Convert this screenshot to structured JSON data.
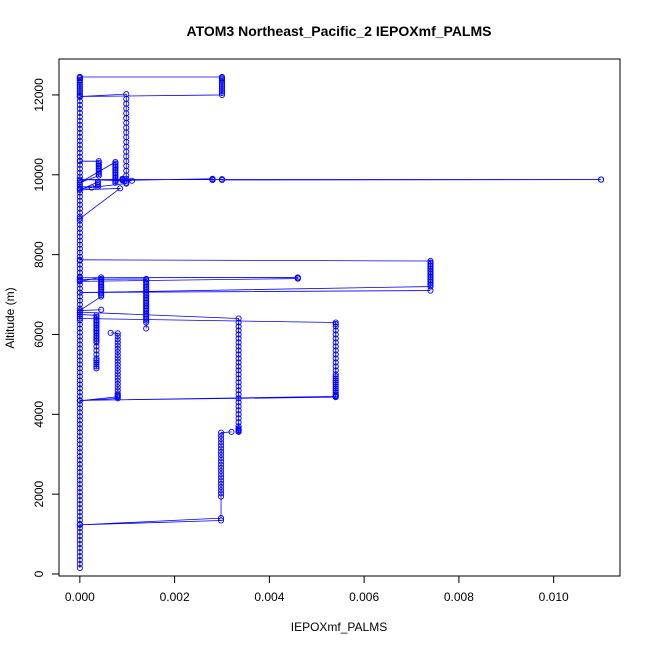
{
  "chart_data": {
    "type": "line",
    "title": "ATOM3 Northeast_Pacific_2 IEPOXmf_PALMS",
    "xlabel": "IEPOXmf_PALMS",
    "ylabel": "Altitude (m)",
    "xlim": [
      -0.00044,
      0.0114
    ],
    "ylim": [
      -50,
      12900
    ],
    "x_ticks": [
      0.0,
      0.002,
      0.004,
      0.006,
      0.008,
      0.01
    ],
    "x_tick_labels": [
      "0.000",
      "0.002",
      "0.004",
      "0.006",
      "0.008",
      "0.010"
    ],
    "y_ticks": [
      0,
      2000,
      4000,
      6000,
      8000,
      10000,
      12000
    ],
    "y_tick_labels": [
      "0",
      "2000",
      "4000",
      "6000",
      "8000",
      "10000",
      "12000"
    ],
    "marker": "open-circle",
    "color": "#0000ff",
    "series": [
      {
        "x": [
          0,
          0,
          0,
          0,
          0,
          0,
          0,
          0,
          0,
          0,
          0,
          0,
          0,
          0,
          0,
          0,
          0,
          0,
          0,
          0,
          0,
          0,
          0,
          0,
          0,
          0,
          0,
          0,
          0,
          0,
          0,
          0,
          0,
          0,
          0,
          0,
          0,
          0,
          0,
          0,
          0,
          0,
          0,
          0,
          0,
          0,
          0,
          0,
          0,
          0,
          0,
          0,
          0,
          0,
          0,
          0,
          0,
          0,
          0,
          0,
          0,
          0,
          0,
          0,
          0,
          0,
          0,
          0,
          0,
          0,
          0,
          0,
          0,
          0,
          0,
          0,
          0,
          0,
          0,
          0,
          0,
          0,
          0,
          0,
          0,
          0,
          0,
          0,
          0,
          0,
          0,
          0,
          0,
          0,
          0,
          0,
          0,
          0,
          0,
          0,
          0,
          0,
          0,
          0,
          0,
          0,
          0,
          0,
          0,
          0,
          0,
          0,
          0,
          0,
          0,
          0,
          0,
          0,
          0,
          0,
          0,
          0,
          0,
          0,
          0,
          0,
          0,
          0,
          0,
          0
        ],
        "y": [
          150,
          250,
          350,
          450,
          550,
          650,
          750,
          850,
          950,
          1050,
          1150,
          1250,
          1350,
          1450,
          1550,
          1650,
          1750,
          1850,
          1950,
          2050,
          2150,
          2250,
          2350,
          2450,
          2550,
          2650,
          2750,
          2850,
          2950,
          3050,
          3150,
          3250,
          3350,
          3450,
          3550,
          3650,
          3750,
          3850,
          3950,
          4050,
          4150,
          4250,
          4350,
          4450,
          4550,
          4650,
          4750,
          4850,
          4950,
          5050,
          5150,
          5250,
          5350,
          5450,
          5550,
          5650,
          5750,
          5850,
          5950,
          6050,
          6150,
          6250,
          6350,
          6450,
          6550,
          6650,
          6750,
          6850,
          6950,
          7050,
          7150,
          7250,
          7350,
          7450,
          7550,
          7650,
          7750,
          7850,
          7950,
          8050,
          8150,
          8250,
          8350,
          8450,
          8550,
          8650,
          8750,
          8850,
          8950,
          9050,
          9150,
          9250,
          9350,
          9450,
          9550,
          9650,
          9750,
          9850,
          9950,
          10050,
          10150,
          10250,
          10350,
          10450,
          10550,
          10650,
          10750,
          10850,
          10950,
          11050,
          11150,
          11250,
          11350,
          11450,
          11550,
          11650,
          11750,
          11850,
          11950,
          12050,
          12150,
          12250,
          12350,
          12450,
          12420,
          12380,
          12300,
          12200,
          12100,
          12000
        ]
      },
      {
        "x": [
          0,
          0.003,
          0.003,
          0.003,
          0.003,
          0.003,
          0.003,
          0.003,
          0.003,
          0.003,
          0.003,
          0.003,
          0,
          0,
          0.00098,
          0.00098,
          0.00098,
          0.00098,
          0.00098,
          0.00098,
          0.00098,
          0.00098,
          0.00098,
          0.00098,
          0.00098,
          0.00098,
          0.00098,
          0.00098,
          0.00098,
          0.00098,
          0.00098,
          0.00098,
          0.00098,
          0.00098,
          0.00098,
          0.00098,
          0,
          0.00025
        ],
        "y": [
          12450,
          12450,
          12420,
          12390,
          12350,
          12300,
          12250,
          12200,
          12150,
          12100,
          12050,
          12000,
          11960,
          11960,
          12020,
          11900,
          11780,
          11660,
          11540,
          11420,
          11300,
          11180,
          11060,
          10940,
          10820,
          10700,
          10580,
          10460,
          10340,
          10220,
          10100,
          9980,
          9900,
          9850,
          9800,
          9780,
          9650,
          9680
        ]
      },
      {
        "x": [
          0,
          0.0004,
          0.0004,
          0.0004,
          0.0004,
          0.0004,
          0.0004,
          0.0004,
          0.0004,
          0.0004,
          0.0004,
          0,
          0.00075,
          0.00075,
          0.00075,
          0.00075,
          0.00075,
          0.00075,
          0.00075,
          0.00075,
          0.00075,
          0.00075,
          0.00075,
          0.00075,
          0.00075,
          0.00075,
          0.0009,
          0.0009,
          0.0009,
          0.0028,
          0.0028,
          0.0028,
          0.003,
          0.003,
          0.011,
          0.011,
          0,
          0.0011
        ],
        "y": [
          10340,
          10340,
          10300,
          10260,
          10220,
          10180,
          10140,
          10100,
          10060,
          10020,
          9980,
          9800,
          10320,
          10280,
          10240,
          10200,
          10160,
          10120,
          10080,
          10040,
          10000,
          9960,
          9920,
          9880,
          9840,
          9800,
          9900,
          9880,
          9860,
          9900,
          9880,
          9870,
          9890,
          9870,
          9880,
          9880,
          9880,
          9850
        ]
      },
      {
        "x": [
          0,
          0.00038,
          0.00038,
          0.00038,
          0.00038,
          0,
          0.00085,
          0
        ],
        "y": [
          9700,
          9700,
          9740,
          9780,
          9820,
          9620,
          9660,
          8900
        ]
      },
      {
        "x": [
          0,
          0.0074,
          0.0074,
          0.0074,
          0.0074,
          0.0074,
          0.0074,
          0.0074,
          0.0074,
          0.0074,
          0.0074,
          0.0074,
          0.0074,
          0.0074,
          0.0074,
          0.0074,
          0.0074,
          0.0074,
          0,
          0.0074
        ],
        "y": [
          7870,
          7840,
          7800,
          7760,
          7720,
          7680,
          7640,
          7600,
          7560,
          7520,
          7480,
          7440,
          7400,
          7360,
          7320,
          7280,
          7240,
          7200,
          7050,
          7100
        ]
      },
      {
        "x": [
          0,
          0.0046,
          0.0046,
          0.0046,
          0,
          0.00045,
          0.00045,
          0.00045,
          0.00045,
          0.00045,
          0.00045,
          0.00045,
          0.00045,
          0.00045,
          0.00045,
          0.00045,
          0.00045,
          0.00045,
          0,
          0.00045
        ],
        "y": [
          7420,
          7430,
          7410,
          7400,
          7330,
          7430,
          7390,
          7350,
          7310,
          7270,
          7230,
          7190,
          7150,
          7110,
          7070,
          7030,
          6990,
          6950,
          6600,
          6620
        ]
      },
      {
        "x": [
          0,
          0.0014,
          0.0014,
          0.0014,
          0.0014,
          0.0014,
          0.0014,
          0.0014,
          0.0014,
          0.0014,
          0.0014,
          0.0014,
          0.0014,
          0.0014,
          0.0014,
          0.0014,
          0.0014,
          0.0014,
          0.0014,
          0.0014,
          0.0014,
          0.0014,
          0.0014,
          0.0014,
          0.0014,
          0.0014,
          0.0014,
          0.0014,
          0.0014,
          0.0014
        ],
        "y": [
          7380,
          7390,
          7350,
          7310,
          7270,
          7230,
          7190,
          7150,
          7110,
          7070,
          7030,
          6990,
          6950,
          6910,
          6870,
          6830,
          6790,
          6750,
          6710,
          6670,
          6630,
          6590,
          6550,
          6510,
          6470,
          6430,
          6390,
          6350,
          6300,
          6150
        ]
      },
      {
        "x": [
          0,
          0.00335,
          0.00335,
          0.00335,
          0.00335,
          0.00335,
          0.00335,
          0.00335,
          0.00335,
          0.00335,
          0.00335,
          0.00335,
          0.00335,
          0.00335,
          0.00335,
          0.00335,
          0.00335,
          0.00335,
          0.00335,
          0.00335,
          0.00335,
          0.00335,
          0.00335,
          0.00335,
          0.00335,
          0.00335,
          0.00335,
          0.00335,
          0.00335,
          0.00335,
          0.00335,
          0.00335,
          0.00335,
          0.00335
        ],
        "y": [
          6560,
          6400,
          6300,
          6200,
          6100,
          6000,
          5900,
          5800,
          5700,
          5600,
          5500,
          5400,
          5300,
          5200,
          5100,
          5000,
          4900,
          4800,
          4700,
          4600,
          4500,
          4400,
          4300,
          4200,
          4100,
          4000,
          3900,
          3800,
          3700,
          3650,
          3620,
          3600,
          3580,
          3560
        ]
      },
      {
        "x": [
          0,
          0.0054,
          0.0054,
          0.0054,
          0.0054,
          0.0054,
          0.0054,
          0.0054,
          0.0054,
          0.0054,
          0.0054,
          0.0054,
          0.0054,
          0.0054,
          0.0054,
          0.0054,
          0.0054,
          0.0054,
          0.0054,
          0.0054,
          0.0054,
          0.0054,
          0.0054,
          0.0054,
          0.0054,
          0.0054,
          0.0054,
          0.0054,
          0.0054,
          0,
          0.0054
        ],
        "y": [
          6400,
          6300,
          6260,
          6200,
          6100,
          6000,
          5900,
          5800,
          5700,
          5600,
          5500,
          5400,
          5300,
          5200,
          5100,
          5000,
          4950,
          4900,
          4850,
          4800,
          4750,
          4700,
          4650,
          4600,
          4550,
          4500,
          4470,
          4460,
          4450,
          4350,
          4430
        ]
      },
      {
        "x": [
          0,
          0.00035,
          0.00035,
          0.00035,
          0.00035,
          0.00035,
          0.00035,
          0.00035,
          0.00035,
          0.00035,
          0.00035,
          0.00035,
          0.00035,
          0.00035,
          0.00035,
          0.00035,
          0.00035,
          0.00035,
          0.00035,
          0.00035,
          0.00035,
          0.00035,
          0.00035,
          0.00035,
          0.00035,
          0.00035,
          0.00035,
          0.00035
        ],
        "y": [
          6500,
          6480,
          6440,
          6400,
          6360,
          6320,
          6280,
          6240,
          6200,
          6160,
          6120,
          6080,
          6040,
          6000,
          5960,
          5920,
          5880,
          5840,
          5800,
          5700,
          5600,
          5500,
          5400,
          5350,
          5300,
          5250,
          5200,
          5150
        ]
      },
      {
        "x": [
          0.00065,
          0.0008,
          0.0008,
          0.0008,
          0.0008,
          0.0008,
          0.0008,
          0.0008,
          0.0008,
          0.0008,
          0.0008,
          0.0008,
          0.0008,
          0.0008,
          0.0008,
          0.0008,
          0.0008,
          0.0008,
          0.0008,
          0.0008,
          0.0008,
          0.0008,
          0.0008,
          0.0008,
          0,
          0.0008
        ],
        "y": [
          6040,
          6030,
          5960,
          5880,
          5800,
          5720,
          5640,
          5560,
          5480,
          5400,
          5320,
          5240,
          5160,
          5080,
          5000,
          4920,
          4840,
          4760,
          4680,
          4600,
          4520,
          4480,
          4460,
          4440,
          4340,
          4400
        ]
      },
      {
        "x": [
          0.0032,
          0.00298,
          0.00298,
          0.00298,
          0.00298,
          0.00298,
          0.00298,
          0.00298,
          0.00298,
          0.00298,
          0.00298,
          0.00298,
          0.00298,
          0.00298,
          0.00298,
          0.00298,
          0.00298,
          0.00298,
          0.00298,
          0.00298,
          0.00298,
          0.00298,
          0.00298,
          0,
          0.00298
        ],
        "y": [
          3560,
          3540,
          3460,
          3380,
          3300,
          3220,
          3140,
          3060,
          2980,
          2900,
          2820,
          2740,
          2660,
          2580,
          2500,
          2420,
          2340,
          2260,
          2180,
          2100,
          2020,
          1940,
          1400,
          1230,
          1340
        ]
      }
    ]
  }
}
